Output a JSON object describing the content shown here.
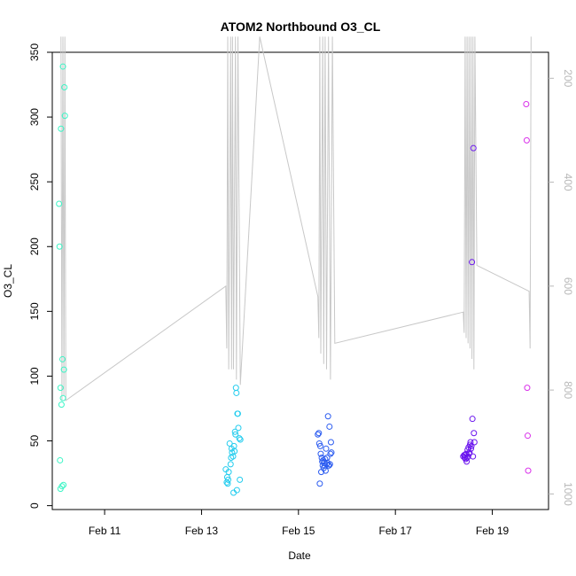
{
  "chart_data": {
    "type": "scatter",
    "title": "ATOM2 Northbound O3_CL",
    "xlabel": "Date",
    "ylabel": "O3_CL",
    "x_unit": "days (February 2017)",
    "xlim": [
      9.92,
      20.16
    ],
    "ylim": [
      -3,
      350
    ],
    "yticks": [
      0,
      50,
      100,
      150,
      200,
      250,
      300,
      350
    ],
    "xticks": [
      {
        "day": 11,
        "label": "Feb 11"
      },
      {
        "day": 13,
        "label": "Feb 13"
      },
      {
        "day": 15,
        "label": "Feb 15"
      },
      {
        "day": 17,
        "label": "Feb 17"
      },
      {
        "day": 19,
        "label": "Feb 19"
      }
    ],
    "right_axis": {
      "reversed": true,
      "color": "#b8b8b8",
      "ticks": [
        200,
        400,
        600,
        800,
        1000
      ]
    },
    "points": [
      {
        "x": 10.06,
        "y": 233,
        "color": "#3cf5c6"
      },
      {
        "x": 10.07,
        "y": 200,
        "color": "#3cf5c6"
      },
      {
        "x": 10.08,
        "y": 35,
        "color": "#3cf5c6"
      },
      {
        "x": 10.09,
        "y": 13,
        "color": "#3cf5c6"
      },
      {
        "x": 10.09,
        "y": 91,
        "color": "#3cf5c6"
      },
      {
        "x": 10.1,
        "y": 291,
        "color": "#3cf5c6"
      },
      {
        "x": 10.11,
        "y": 78,
        "color": "#3cf5c6"
      },
      {
        "x": 10.12,
        "y": 15,
        "color": "#3cf5c6"
      },
      {
        "x": 10.13,
        "y": 113,
        "color": "#3cf5c6"
      },
      {
        "x": 10.14,
        "y": 339,
        "color": "#3cf5c6"
      },
      {
        "x": 10.14,
        "y": 83,
        "color": "#3cf5c6"
      },
      {
        "x": 10.15,
        "y": 16,
        "color": "#3cf5c6"
      },
      {
        "x": 10.16,
        "y": 105,
        "color": "#3cf5c6"
      },
      {
        "x": 10.17,
        "y": 323,
        "color": "#3cf5c6"
      },
      {
        "x": 10.18,
        "y": 301,
        "color": "#3cf5c6"
      },
      {
        "x": 13.5,
        "y": 28,
        "color": "#22ccee"
      },
      {
        "x": 13.52,
        "y": 18,
        "color": "#22ccee"
      },
      {
        "x": 13.53,
        "y": 22,
        "color": "#22ccee"
      },
      {
        "x": 13.54,
        "y": 17,
        "color": "#22ccee"
      },
      {
        "x": 13.55,
        "y": 20,
        "color": "#22ccee"
      },
      {
        "x": 13.56,
        "y": 26,
        "color": "#22ccee"
      },
      {
        "x": 13.58,
        "y": 48,
        "color": "#22ccee"
      },
      {
        "x": 13.6,
        "y": 32,
        "color": "#22ccee"
      },
      {
        "x": 13.61,
        "y": 37,
        "color": "#22ccee"
      },
      {
        "x": 13.62,
        "y": 44,
        "color": "#22ccee"
      },
      {
        "x": 13.63,
        "y": 41,
        "color": "#22ccee"
      },
      {
        "x": 13.65,
        "y": 38,
        "color": "#22ccee"
      },
      {
        "x": 13.66,
        "y": 10,
        "color": "#22ccee"
      },
      {
        "x": 13.67,
        "y": 46,
        "color": "#22ccee"
      },
      {
        "x": 13.68,
        "y": 42,
        "color": "#22ccee"
      },
      {
        "x": 13.69,
        "y": 57,
        "color": "#22ccee"
      },
      {
        "x": 13.7,
        "y": 55,
        "color": "#22ccee"
      },
      {
        "x": 13.71,
        "y": 91,
        "color": "#22ccee"
      },
      {
        "x": 13.72,
        "y": 87,
        "color": "#22ccee"
      },
      {
        "x": 13.73,
        "y": 12,
        "color": "#22ccee"
      },
      {
        "x": 13.74,
        "y": 71,
        "color": "#22ccee"
      },
      {
        "x": 13.75,
        "y": 71,
        "color": "#22ccee"
      },
      {
        "x": 13.76,
        "y": 60,
        "color": "#22ccee"
      },
      {
        "x": 13.78,
        "y": 52,
        "color": "#22ccee"
      },
      {
        "x": 13.79,
        "y": 20,
        "color": "#22ccee"
      },
      {
        "x": 13.8,
        "y": 51,
        "color": "#22ccee"
      },
      {
        "x": 15.4,
        "y": 55,
        "color": "#2c5cf0"
      },
      {
        "x": 15.42,
        "y": 56,
        "color": "#2c5cf0"
      },
      {
        "x": 15.43,
        "y": 48,
        "color": "#2c5cf0"
      },
      {
        "x": 15.44,
        "y": 17,
        "color": "#2c5cf0"
      },
      {
        "x": 15.45,
        "y": 46,
        "color": "#2c5cf0"
      },
      {
        "x": 15.46,
        "y": 40,
        "color": "#2c5cf0"
      },
      {
        "x": 15.47,
        "y": 26,
        "color": "#2c5cf0"
      },
      {
        "x": 15.48,
        "y": 37,
        "color": "#2c5cf0"
      },
      {
        "x": 15.49,
        "y": 34,
        "color": "#2c5cf0"
      },
      {
        "x": 15.5,
        "y": 31,
        "color": "#2c5cf0"
      },
      {
        "x": 15.51,
        "y": 35,
        "color": "#2c5cf0"
      },
      {
        "x": 15.52,
        "y": 29,
        "color": "#2c5cf0"
      },
      {
        "x": 15.53,
        "y": 33,
        "color": "#2c5cf0"
      },
      {
        "x": 15.54,
        "y": 31,
        "color": "#2c5cf0"
      },
      {
        "x": 15.55,
        "y": 36,
        "color": "#2c5cf0"
      },
      {
        "x": 15.56,
        "y": 27,
        "color": "#2c5cf0"
      },
      {
        "x": 15.57,
        "y": 44,
        "color": "#2c5cf0"
      },
      {
        "x": 15.58,
        "y": 32,
        "color": "#2c5cf0"
      },
      {
        "x": 15.59,
        "y": 37,
        "color": "#2c5cf0"
      },
      {
        "x": 15.6,
        "y": 33,
        "color": "#2c5cf0"
      },
      {
        "x": 15.61,
        "y": 69,
        "color": "#2c5cf0"
      },
      {
        "x": 15.62,
        "y": 31,
        "color": "#2c5cf0"
      },
      {
        "x": 15.63,
        "y": 31,
        "color": "#2c5cf0"
      },
      {
        "x": 15.64,
        "y": 61,
        "color": "#2c5cf0"
      },
      {
        "x": 15.65,
        "y": 32,
        "color": "#2c5cf0"
      },
      {
        "x": 15.66,
        "y": 40,
        "color": "#2c5cf0"
      },
      {
        "x": 15.67,
        "y": 49,
        "color": "#2c5cf0"
      },
      {
        "x": 15.68,
        "y": 41,
        "color": "#2c5cf0"
      },
      {
        "x": 18.4,
        "y": 38,
        "color": "#6a14ee"
      },
      {
        "x": 18.42,
        "y": 39,
        "color": "#6a14ee"
      },
      {
        "x": 18.43,
        "y": 37,
        "color": "#6a14ee"
      },
      {
        "x": 18.44,
        "y": 39,
        "color": "#6a14ee"
      },
      {
        "x": 18.45,
        "y": 36,
        "color": "#6a14ee"
      },
      {
        "x": 18.46,
        "y": 40,
        "color": "#6a14ee"
      },
      {
        "x": 18.47,
        "y": 34,
        "color": "#6a14ee"
      },
      {
        "x": 18.48,
        "y": 37,
        "color": "#6a14ee"
      },
      {
        "x": 18.49,
        "y": 43,
        "color": "#6a14ee"
      },
      {
        "x": 18.5,
        "y": 38,
        "color": "#6a14ee"
      },
      {
        "x": 18.51,
        "y": 45,
        "color": "#6a14ee"
      },
      {
        "x": 18.52,
        "y": 40,
        "color": "#6a14ee"
      },
      {
        "x": 18.53,
        "y": 41,
        "color": "#6a14ee"
      },
      {
        "x": 18.54,
        "y": 47,
        "color": "#6a14ee"
      },
      {
        "x": 18.55,
        "y": 49,
        "color": "#6a14ee"
      },
      {
        "x": 18.56,
        "y": 44,
        "color": "#6a14ee"
      },
      {
        "x": 18.57,
        "y": 46,
        "color": "#6a14ee"
      },
      {
        "x": 18.58,
        "y": 188,
        "color": "#6a14ee"
      },
      {
        "x": 18.59,
        "y": 67,
        "color": "#6a14ee"
      },
      {
        "x": 18.6,
        "y": 38,
        "color": "#6a14ee"
      },
      {
        "x": 18.61,
        "y": 276,
        "color": "#6a14ee"
      },
      {
        "x": 18.62,
        "y": 56,
        "color": "#6a14ee"
      },
      {
        "x": 18.63,
        "y": 49,
        "color": "#6a14ee"
      },
      {
        "x": 19.7,
        "y": 310,
        "color": "#d930ea"
      },
      {
        "x": 19.71,
        "y": 282,
        "color": "#d930ea"
      },
      {
        "x": 19.72,
        "y": 91,
        "color": "#d930ea"
      },
      {
        "x": 19.73,
        "y": 54,
        "color": "#d930ea"
      },
      {
        "x": 19.74,
        "y": 27,
        "color": "#d930ea"
      }
    ],
    "pressure_line": {
      "color": "#c8c8c8",
      "x": [
        10.1,
        10.12,
        10.14,
        10.16,
        10.18,
        10.2,
        13.5,
        13.52,
        13.54,
        13.56,
        13.6,
        13.62,
        13.64,
        13.66,
        13.7,
        13.72,
        13.75,
        13.8,
        14.2,
        15.4,
        15.42,
        15.44,
        15.46,
        15.5,
        15.52,
        15.55,
        15.58,
        15.62,
        15.66,
        15.7,
        15.75,
        18.4,
        18.42,
        18.44,
        18.46,
        18.48,
        18.5,
        18.52,
        18.54,
        18.56,
        18.58,
        18.6,
        18.62,
        18.64,
        18.68,
        19.76,
        19.78,
        19.8
      ],
      "y": [
        120,
        820,
        120,
        810,
        120,
        820,
        600,
        720,
        120,
        760,
        120,
        760,
        120,
        760,
        120,
        780,
        120,
        790,
        120,
        620,
        700,
        120,
        730,
        120,
        750,
        120,
        760,
        120,
        780,
        120,
        710,
        650,
        690,
        120,
        700,
        120,
        710,
        120,
        720,
        120,
        740,
        120,
        760,
        120,
        560,
        610,
        720,
        120
      ]
    }
  }
}
